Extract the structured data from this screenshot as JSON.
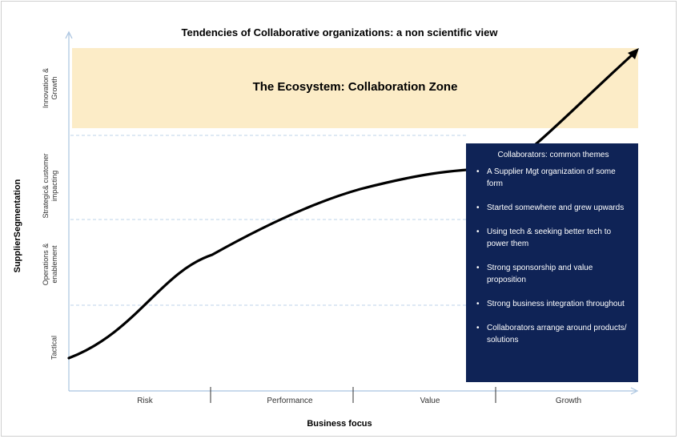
{
  "title": "Tendencies of Collaborative organizations: a non scientific view",
  "zone": {
    "label": "The Ecosystem: Collaboration Zone"
  },
  "y_axis": {
    "label": "SupplierSegmentation",
    "ticks": [
      "Tactical",
      "Operations & enablement",
      "Strategic& customer impacting",
      "Innovation & Growth"
    ]
  },
  "x_axis": {
    "label": "Business focus",
    "ticks": [
      "Risk",
      "Performance",
      "Value",
      "Growth"
    ]
  },
  "callout": {
    "title": "Collaborators: common themes",
    "items": [
      "A Supplier Mgt organization of some form",
      "Started somewhere and grew upwards",
      "Using tech & seeking better tech to power them",
      "Strong sponsorship and value proposition",
      "Strong business integration throughout",
      "Collaborators arrange around products/ solutions"
    ]
  },
  "colors": {
    "zone_fill": "#fcecc7",
    "callout_fill": "#0f2356",
    "axis": "#a9c4e0",
    "curve": "#000000"
  }
}
